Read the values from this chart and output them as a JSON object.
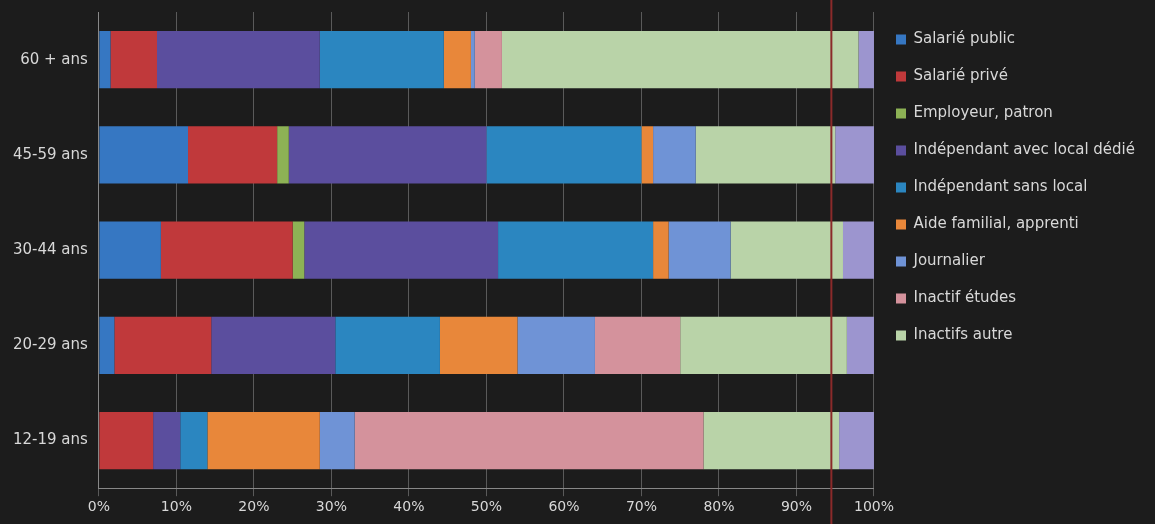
{
  "chart_data": {
    "type": "bar",
    "orientation": "horizontal",
    "stacked": true,
    "categories": [
      "60 + ans",
      "45-59 ans",
      "30-44 ans",
      "20-29 ans",
      "12-19 ans"
    ],
    "series": [
      {
        "name": "Salarié public",
        "color": "#3677c2",
        "values": [
          1.5,
          11.5,
          8,
          2,
          0
        ]
      },
      {
        "name": "Salarié privé",
        "color": "#c0393b",
        "values": [
          6,
          11.5,
          17,
          12.5,
          7
        ]
      },
      {
        "name": "Employeur, patron",
        "color": "#8db255",
        "values": [
          0,
          1.5,
          1.5,
          0,
          0
        ]
      },
      {
        "name": "Indépendant avec local dédié",
        "color": "#5b4e9e",
        "values": [
          21,
          25.5,
          25,
          16,
          3.5
        ]
      },
      {
        "name": "Indépendant sans local",
        "color": "#2b86c0",
        "values": [
          16,
          20,
          20,
          13.5,
          3.5
        ]
      },
      {
        "name": "Aide familial, apprenti",
        "color": "#e8873a",
        "values": [
          3.5,
          1.5,
          2,
          10,
          14.5
        ]
      },
      {
        "name": "Journalier",
        "color": "#6f93d6",
        "values": [
          0.5,
          5.5,
          8,
          10,
          4.5
        ]
      },
      {
        "name": "Inactif études",
        "color": "#d4929c",
        "values": [
          3.5,
          0,
          0,
          11,
          45
        ]
      },
      {
        "name": "Inactifs autre",
        "color": "#b9d3a8",
        "values": [
          46,
          18,
          14.5,
          21.5,
          17.5
        ]
      },
      {
        "color": "#9c95cf",
        "values": [
          2,
          5,
          4,
          3.5,
          4.5
        ]
      }
    ],
    "xlim": [
      0,
      100
    ],
    "xticks": [
      {
        "value": 0,
        "label": "0%"
      },
      {
        "value": 10,
        "label": "10%"
      },
      {
        "value": 20,
        "label": "20%"
      },
      {
        "value": 30,
        "label": "30%"
      },
      {
        "value": 40,
        "label": "40%"
      },
      {
        "value": 50,
        "label": "50%"
      },
      {
        "value": 60,
        "label": "60%"
      },
      {
        "value": 70,
        "label": "70%"
      },
      {
        "value": 80,
        "label": "80%"
      },
      {
        "value": 90,
        "label": "90%"
      },
      {
        "value": 100,
        "label": "100%"
      }
    ],
    "ref_lines": [
      {
        "axis": "x",
        "value": 94.5,
        "color": "#8b2a2a"
      }
    ],
    "grid": "x",
    "legend": "right"
  }
}
